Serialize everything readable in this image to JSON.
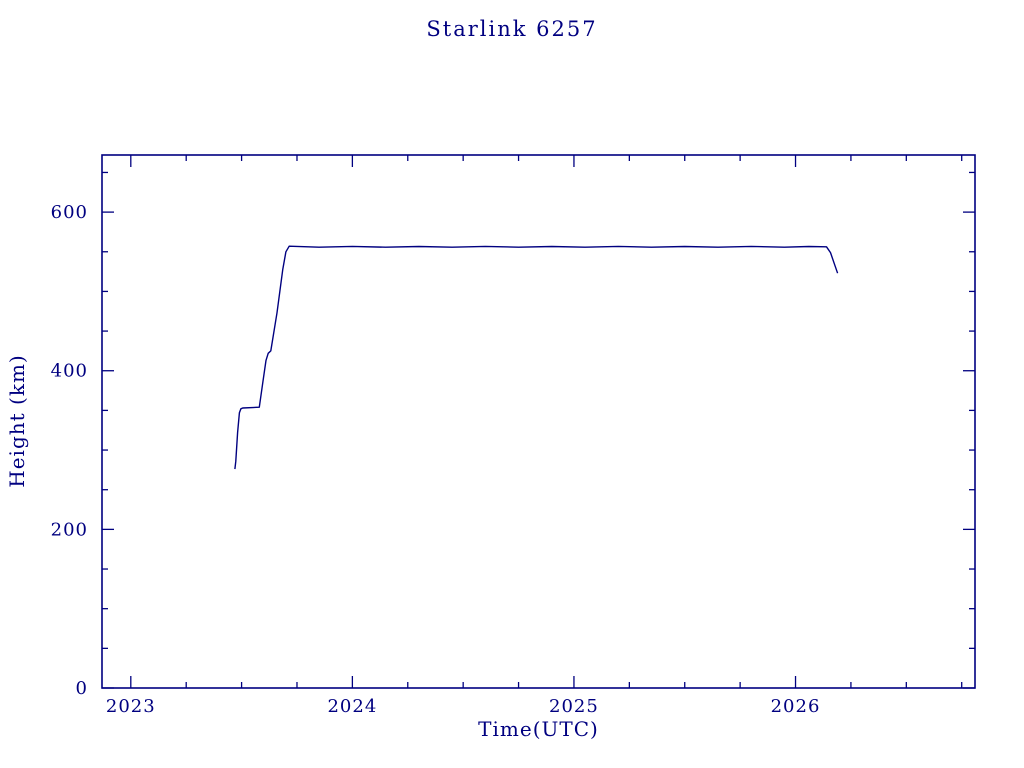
{
  "page": {
    "background": "#ffffff"
  },
  "chart_data": {
    "type": "line",
    "title": "Starlink 6257",
    "xlabel": "Time(UTC)",
    "ylabel": "Height (km)",
    "xlim": [
      2022.87,
      2026.81
    ],
    "ylim": [
      0,
      672
    ],
    "xticks": [
      2023,
      2024,
      2025,
      2026
    ],
    "yticks": [
      0,
      200,
      400,
      600
    ],
    "x_minor_step": 0.25,
    "y_minor_step": 50,
    "grid": false,
    "legend": "none",
    "axis_color": "#000080",
    "text_color": "#000080",
    "line_color": "#000080",
    "series": [
      {
        "name": "height-km",
        "points": [
          [
            2023.47,
            276
          ],
          [
            2023.474,
            286
          ],
          [
            2023.482,
            322
          ],
          [
            2023.49,
            347
          ],
          [
            2023.497,
            352
          ],
          [
            2023.505,
            353
          ],
          [
            2023.58,
            354
          ],
          [
            2023.596,
            386
          ],
          [
            2023.61,
            413
          ],
          [
            2023.62,
            422
          ],
          [
            2023.632,
            425
          ],
          [
            2023.66,
            473
          ],
          [
            2023.686,
            528
          ],
          [
            2023.7,
            550
          ],
          [
            2023.715,
            557
          ],
          [
            2023.85,
            555.8
          ],
          [
            2024.0,
            556.8
          ],
          [
            2024.15,
            555.7
          ],
          [
            2024.3,
            556.7
          ],
          [
            2024.45,
            555.8
          ],
          [
            2024.6,
            556.8
          ],
          [
            2024.75,
            555.7
          ],
          [
            2024.9,
            556.7
          ],
          [
            2025.05,
            555.8
          ],
          [
            2025.2,
            556.8
          ],
          [
            2025.35,
            555.7
          ],
          [
            2025.5,
            556.7
          ],
          [
            2025.65,
            555.8
          ],
          [
            2025.8,
            556.8
          ],
          [
            2025.95,
            555.7
          ],
          [
            2026.06,
            556.6
          ],
          [
            2026.14,
            556.2
          ],
          [
            2026.158,
            549
          ],
          [
            2026.175,
            535
          ],
          [
            2026.19,
            523
          ]
        ]
      }
    ]
  }
}
